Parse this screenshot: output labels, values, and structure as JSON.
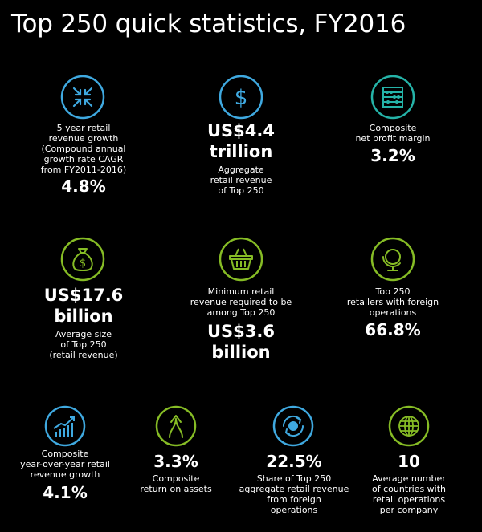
{
  "title": "Top 250 quick statistics, FY2016",
  "colors": {
    "blue": "#3fa9e0",
    "green": "#86bc25",
    "teal": "#25b3a8",
    "background": "#000000",
    "text": "#ffffff"
  },
  "stats": [
    {
      "icon": "compress-arrows-icon",
      "label": "5 year retail\nrevenue growth\n(Compound annual\ngrowth rate CAGR\nfrom FY2011-2016)",
      "value": "4.8%"
    },
    {
      "icon": "dollar-icon",
      "value": "US$4.4\ntrillion",
      "label": "Aggregate\nretail revenue\nof Top 250"
    },
    {
      "icon": "abacus-icon",
      "label": "Composite\nnet profit margin",
      "value": "3.2%"
    },
    {
      "icon": "money-bag-icon",
      "value": "US$17.6\nbillion",
      "label": "Average size\nof Top 250\n(retail revenue)"
    },
    {
      "icon": "shopping-basket-icon",
      "label": "Minimum retail\nrevenue required to be\namong Top 250",
      "value": "US$3.6\nbillion"
    },
    {
      "icon": "globe-stand-icon",
      "label": "Top 250\nretailers with foreign\noperations",
      "value": "66.8%"
    },
    {
      "icon": "growth-chart-icon",
      "label": "Composite\nyear-over-year retail\nrevenue growth",
      "value": "4.1%"
    },
    {
      "icon": "merge-arrows-icon",
      "value": "3.3%",
      "label": "Composite\nreturn on assets"
    },
    {
      "icon": "globe-cycle-icon",
      "value": "22.5%",
      "label": "Share of Top 250\naggregate retail revenue\nfrom foreign\noperations"
    },
    {
      "icon": "globe-grid-icon",
      "value": "10",
      "label": "Average number\nof countries with\nretail operations\nper company"
    }
  ]
}
